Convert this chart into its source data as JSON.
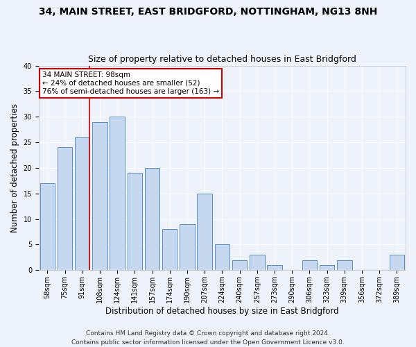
{
  "title1": "34, MAIN STREET, EAST BRIDGFORD, NOTTINGHAM, NG13 8NH",
  "title2": "Size of property relative to detached houses in East Bridgford",
  "xlabel": "Distribution of detached houses by size in East Bridgford",
  "ylabel": "Number of detached properties",
  "categories": [
    "58sqm",
    "75sqm",
    "91sqm",
    "108sqm",
    "124sqm",
    "141sqm",
    "157sqm",
    "174sqm",
    "190sqm",
    "207sqm",
    "224sqm",
    "240sqm",
    "257sqm",
    "273sqm",
    "290sqm",
    "306sqm",
    "323sqm",
    "339sqm",
    "356sqm",
    "372sqm",
    "389sqm"
  ],
  "values": [
    17,
    24,
    26,
    29,
    30,
    19,
    20,
    8,
    9,
    15,
    5,
    2,
    3,
    1,
    0,
    2,
    1,
    2,
    0,
    0,
    3
  ],
  "bar_color": "#c5d8f0",
  "bar_edge_color": "#5a8fc3",
  "ylim": [
    0,
    40
  ],
  "yticks": [
    0,
    5,
    10,
    15,
    20,
    25,
    30,
    35,
    40
  ],
  "vline_color": "#cc0000",
  "annotation_text": "34 MAIN STREET: 98sqm\n← 24% of detached houses are smaller (52)\n76% of semi-detached houses are larger (163) →",
  "annotation_box_color": "#ffffff",
  "annotation_box_edge": "#cc0000",
  "footer1": "Contains HM Land Registry data © Crown copyright and database right 2024.",
  "footer2": "Contains public sector information licensed under the Open Government Licence v3.0.",
  "bg_color": "#eef2fa",
  "grid_color": "#ffffff",
  "title1_fontsize": 10,
  "title2_fontsize": 9,
  "xlabel_fontsize": 8.5,
  "ylabel_fontsize": 8.5,
  "tick_fontsize": 7,
  "footer_fontsize": 6.5,
  "ann_fontsize": 7.5
}
